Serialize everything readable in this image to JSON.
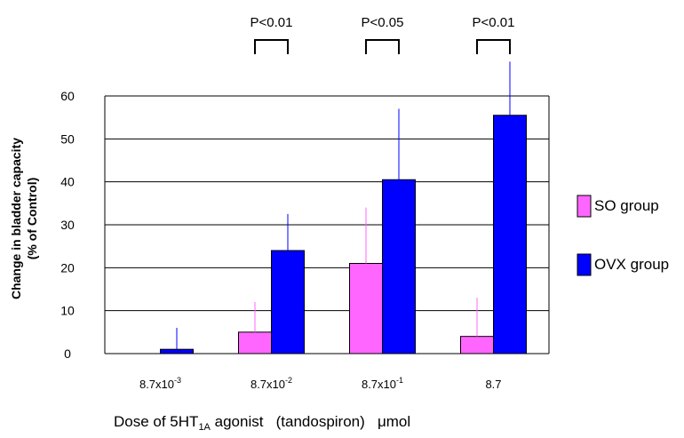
{
  "chart_data": {
    "type": "bar",
    "categories": [
      {
        "base": "8.7x10",
        "exp": "-3"
      },
      {
        "base": "8.7x10",
        "exp": "-2"
      },
      {
        "base": "8.7x10",
        "exp": "-1"
      },
      {
        "base": "8.7",
        "exp": ""
      }
    ],
    "series": [
      {
        "name": "SO group",
        "color": "#ff66ff",
        "error_color": "#ff66ff",
        "values": [
          0,
          5,
          21,
          4
        ],
        "errors": [
          0,
          7,
          13,
          9
        ]
      },
      {
        "name": "OVX group",
        "color": "#0000ff",
        "error_color": "#0000ff",
        "values": [
          1,
          24,
          40.5,
          55.5
        ],
        "errors": [
          5,
          8.5,
          16.5,
          12.5
        ]
      }
    ],
    "ylabel_line1": "Change in bladder capacity",
    "ylabel_line2": "(% of Control)",
    "xlabel": {
      "pre": "Dose of 5HT",
      "sub": "1A",
      "post": " agonist   (tandospiron)   μmol"
    },
    "ylim": [
      0,
      60
    ],
    "yticks": [
      0,
      10,
      20,
      30,
      40,
      50,
      60
    ],
    "grid": true,
    "legend_position": "right",
    "significance": [
      {
        "category_index": 1,
        "label": "P<0.01"
      },
      {
        "category_index": 2,
        "label": "P<0.05"
      },
      {
        "category_index": 3,
        "label": "P<0.01"
      }
    ]
  }
}
